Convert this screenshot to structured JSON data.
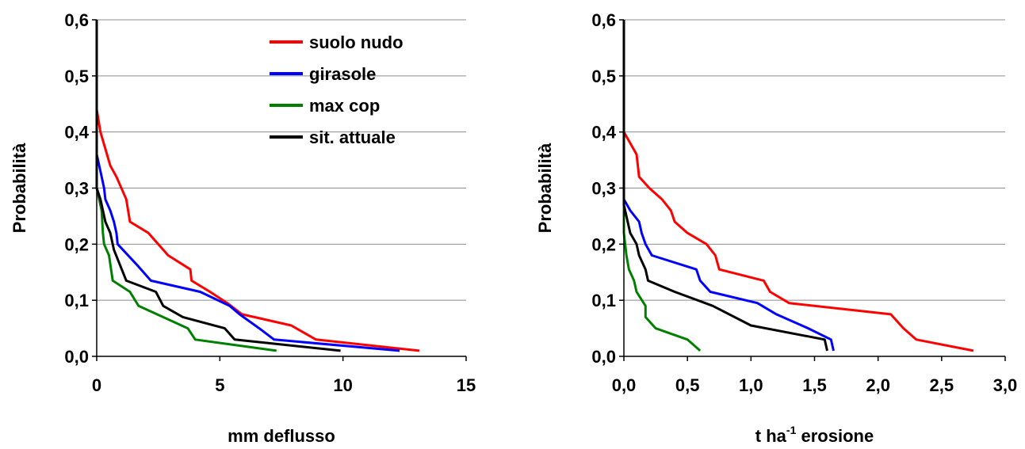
{
  "chart_data": [
    {
      "type": "line",
      "xlabel": "mm deflusso",
      "ylabel": "Probabilità",
      "xlim": [
        0,
        15
      ],
      "ylim": [
        0,
        0.6
      ],
      "xticks": [
        "0",
        "5",
        "10",
        "15"
      ],
      "yticks": [
        "0,0",
        "0,1",
        "0,2",
        "0,3",
        "0,4",
        "0,5",
        "0,6"
      ],
      "grid": "horizontal",
      "legend_position": "top-right",
      "series": [
        {
          "name": "suolo nudo",
          "color": "#ff0000",
          "points": [
            [
              0,
              0.6
            ],
            [
              0,
              0.44
            ],
            [
              0.15,
              0.4
            ],
            [
              0.35,
              0.37
            ],
            [
              0.55,
              0.34
            ],
            [
              0.8,
              0.32
            ],
            [
              1.2,
              0.28
            ],
            [
              1.35,
              0.24
            ],
            [
              2.1,
              0.22
            ],
            [
              2.9,
              0.18
            ],
            [
              3.8,
              0.155
            ],
            [
              3.85,
              0.135
            ],
            [
              4.6,
              0.115
            ],
            [
              5.3,
              0.095
            ],
            [
              5.9,
              0.075
            ],
            [
              7.9,
              0.055
            ],
            [
              8.9,
              0.03
            ],
            [
              13.1,
              0.01
            ]
          ]
        },
        {
          "name": "girasole",
          "color": "#0000ff",
          "points": [
            [
              0,
              0.6
            ],
            [
              0,
              0.36
            ],
            [
              0.15,
              0.33
            ],
            [
              0.3,
              0.3
            ],
            [
              0.35,
              0.28
            ],
            [
              0.55,
              0.26
            ],
            [
              0.7,
              0.24
            ],
            [
              0.8,
              0.22
            ],
            [
              0.85,
              0.2
            ],
            [
              1.7,
              0.16
            ],
            [
              2.2,
              0.135
            ],
            [
              4.2,
              0.115
            ],
            [
              5.4,
              0.09
            ],
            [
              5.8,
              0.075
            ],
            [
              6.6,
              0.05
            ],
            [
              7.2,
              0.03
            ],
            [
              12.3,
              0.01
            ]
          ]
        },
        {
          "name": "max cop",
          "color": "#008000",
          "points": [
            [
              0,
              0.6
            ],
            [
              0,
              0.3
            ],
            [
              0.2,
              0.26
            ],
            [
              0.25,
              0.22
            ],
            [
              0.3,
              0.2
            ],
            [
              0.5,
              0.18
            ],
            [
              0.65,
              0.135
            ],
            [
              1.35,
              0.115
            ],
            [
              1.7,
              0.09
            ],
            [
              3.7,
              0.05
            ],
            [
              4.0,
              0.03
            ],
            [
              7.3,
              0.01
            ]
          ]
        },
        {
          "name": "sit. attuale",
          "color": "#000000",
          "points": [
            [
              0,
              0.6
            ],
            [
              0,
              0.3
            ],
            [
              0.15,
              0.28
            ],
            [
              0.25,
              0.26
            ],
            [
              0.35,
              0.24
            ],
            [
              0.55,
              0.22
            ],
            [
              0.7,
              0.19
            ],
            [
              1.2,
              0.135
            ],
            [
              2.4,
              0.115
            ],
            [
              2.7,
              0.09
            ],
            [
              3.5,
              0.07
            ],
            [
              5.2,
              0.05
            ],
            [
              5.6,
              0.03
            ],
            [
              9.9,
              0.01
            ]
          ]
        }
      ]
    },
    {
      "type": "line",
      "xlabel_main": "t ha",
      "xlabel_sup": "-1",
      "xlabel_tail": " erosione",
      "ylabel": "Probabilità",
      "xlim": [
        0,
        3
      ],
      "ylim": [
        0,
        0.6
      ],
      "xticks": [
        "0,0",
        "0,5",
        "1,0",
        "1,5",
        "2,0",
        "2,5",
        "3,0"
      ],
      "yticks": [
        "0,0",
        "0,1",
        "0,2",
        "0,3",
        "0,4",
        "0,5",
        "0,6"
      ],
      "grid": "horizontal",
      "series": [
        {
          "name": "suolo nudo",
          "color": "#ff0000",
          "points": [
            [
              0,
              0.6
            ],
            [
              0,
              0.4
            ],
            [
              0.05,
              0.38
            ],
            [
              0.1,
              0.36
            ],
            [
              0.12,
              0.32
            ],
            [
              0.2,
              0.3
            ],
            [
              0.3,
              0.28
            ],
            [
              0.37,
              0.26
            ],
            [
              0.4,
              0.24
            ],
            [
              0.5,
              0.22
            ],
            [
              0.65,
              0.2
            ],
            [
              0.72,
              0.18
            ],
            [
              0.75,
              0.155
            ],
            [
              1.1,
              0.135
            ],
            [
              1.15,
              0.115
            ],
            [
              1.3,
              0.095
            ],
            [
              2.1,
              0.075
            ],
            [
              2.2,
              0.05
            ],
            [
              2.3,
              0.03
            ],
            [
              2.75,
              0.01
            ]
          ]
        },
        {
          "name": "girasole",
          "color": "#0000ff",
          "points": [
            [
              0,
              0.6
            ],
            [
              0,
              0.28
            ],
            [
              0.05,
              0.26
            ],
            [
              0.12,
              0.24
            ],
            [
              0.14,
              0.22
            ],
            [
              0.17,
              0.2
            ],
            [
              0.22,
              0.18
            ],
            [
              0.57,
              0.155
            ],
            [
              0.6,
              0.135
            ],
            [
              0.68,
              0.115
            ],
            [
              1.05,
              0.095
            ],
            [
              1.2,
              0.075
            ],
            [
              1.45,
              0.05
            ],
            [
              1.63,
              0.03
            ],
            [
              1.65,
              0.01
            ]
          ]
        },
        {
          "name": "max cop",
          "color": "#008000",
          "points": [
            [
              0,
              0.6
            ],
            [
              0,
              0.22
            ],
            [
              0.02,
              0.18
            ],
            [
              0.04,
              0.155
            ],
            [
              0.08,
              0.135
            ],
            [
              0.1,
              0.115
            ],
            [
              0.17,
              0.09
            ],
            [
              0.17,
              0.07
            ],
            [
              0.25,
              0.05
            ],
            [
              0.5,
              0.03
            ],
            [
              0.6,
              0.01
            ]
          ]
        },
        {
          "name": "sit. attuale",
          "color": "#000000",
          "points": [
            [
              0,
              0.6
            ],
            [
              0,
              0.27
            ],
            [
              0.05,
              0.22
            ],
            [
              0.1,
              0.2
            ],
            [
              0.12,
              0.18
            ],
            [
              0.17,
              0.155
            ],
            [
              0.19,
              0.135
            ],
            [
              0.4,
              0.115
            ],
            [
              0.7,
              0.09
            ],
            [
              1.0,
              0.055
            ],
            [
              1.58,
              0.03
            ],
            [
              1.6,
              0.01
            ]
          ]
        }
      ]
    }
  ]
}
